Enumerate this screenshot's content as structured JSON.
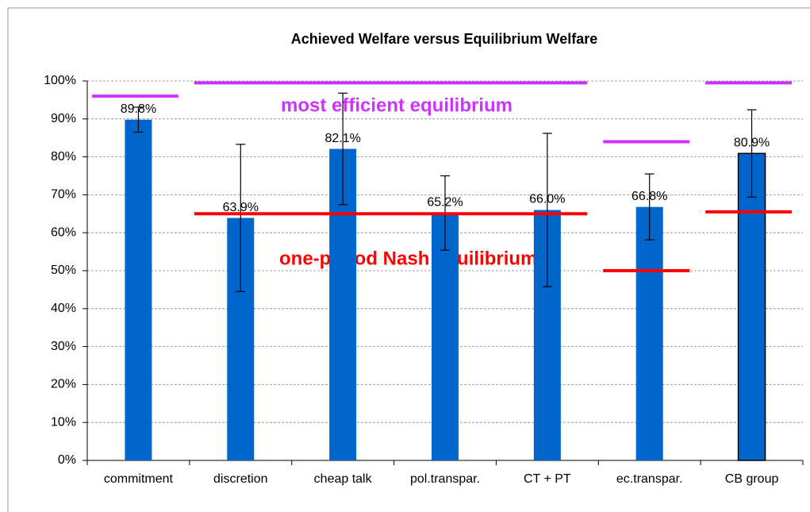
{
  "chart_data": {
    "type": "bar",
    "title": "Achieved Welfare versus Equilibrium Welfare",
    "categories": [
      "commitment",
      "discretion",
      "cheap talk",
      "pol.transpar.",
      "CT + PT",
      "ec.transpar.",
      "CB group"
    ],
    "values": [
      89.8,
      63.9,
      82.1,
      65.2,
      66.0,
      66.8,
      80.9
    ],
    "value_labels": [
      "89.8%",
      "63.9%",
      "82.1%",
      "65.2%",
      "66.0%",
      "66.8%",
      "80.9%"
    ],
    "errors": [
      3.3,
      19.4,
      14.7,
      9.8,
      20.2,
      8.7,
      11.5
    ],
    "color": "#0066cc",
    "highlight": "CB group",
    "reference_lines": [
      {
        "name": "most efficient equilibrium",
        "color": "#cc33ff",
        "values": [
          96,
          99.5,
          99.5,
          99.5,
          99.5,
          84,
          99.5
        ]
      },
      {
        "name": "one-period Nash equilibrium",
        "color": "#ff0000",
        "values": [
          null,
          65,
          65,
          65,
          65,
          50,
          65.5
        ]
      }
    ],
    "ylim": [
      0,
      100
    ],
    "yticks": [
      {
        "value": 0,
        "label": "0%"
      },
      {
        "value": 10,
        "label": "10%"
      },
      {
        "value": 20,
        "label": "20%"
      },
      {
        "value": 30,
        "label": "30%"
      },
      {
        "value": 40,
        "label": "40%"
      },
      {
        "value": 50,
        "label": "50%"
      },
      {
        "value": 60,
        "label": "60%"
      },
      {
        "value": 70,
        "label": "70%"
      },
      {
        "value": 80,
        "label": "80%"
      },
      {
        "value": 90,
        "label": "90%"
      },
      {
        "value": 100,
        "label": "100%"
      }
    ],
    "grid": true
  }
}
